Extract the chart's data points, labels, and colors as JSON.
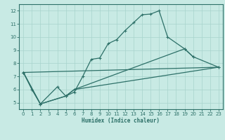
{
  "xlabel": "Humidex (Indice chaleur)",
  "background_color": "#c8eae4",
  "line_color": "#2d7068",
  "grid_color": "#a8d4cc",
  "xlim": [
    -0.5,
    23.5
  ],
  "ylim": [
    4.5,
    12.5
  ],
  "xticks": [
    0,
    1,
    2,
    3,
    4,
    5,
    6,
    7,
    8,
    9,
    10,
    11,
    12,
    13,
    14,
    15,
    16,
    17,
    18,
    19,
    20,
    21,
    22,
    23
  ],
  "yticks": [
    5,
    6,
    7,
    8,
    9,
    10,
    11,
    12
  ],
  "line1_x": [
    0,
    1,
    2,
    4,
    5,
    6,
    7,
    8,
    9,
    10,
    11,
    12,
    13,
    14,
    15,
    16,
    17,
    19,
    20
  ],
  "line1_y": [
    7.3,
    6.0,
    4.9,
    6.2,
    5.5,
    5.8,
    7.0,
    8.3,
    8.4,
    9.5,
    9.8,
    10.5,
    11.1,
    11.7,
    11.75,
    12.0,
    10.0,
    9.1,
    8.5
  ],
  "line2_x": [
    0,
    2,
    5,
    6,
    23
  ],
  "line2_y": [
    7.3,
    4.9,
    5.5,
    6.0,
    7.7
  ],
  "line3_x": [
    0,
    2,
    5,
    6,
    19,
    20,
    23
  ],
  "line3_y": [
    7.3,
    4.9,
    5.5,
    6.0,
    9.1,
    8.5,
    7.7
  ],
  "line4_x": [
    0,
    23
  ],
  "line4_y": [
    7.3,
    7.7
  ]
}
